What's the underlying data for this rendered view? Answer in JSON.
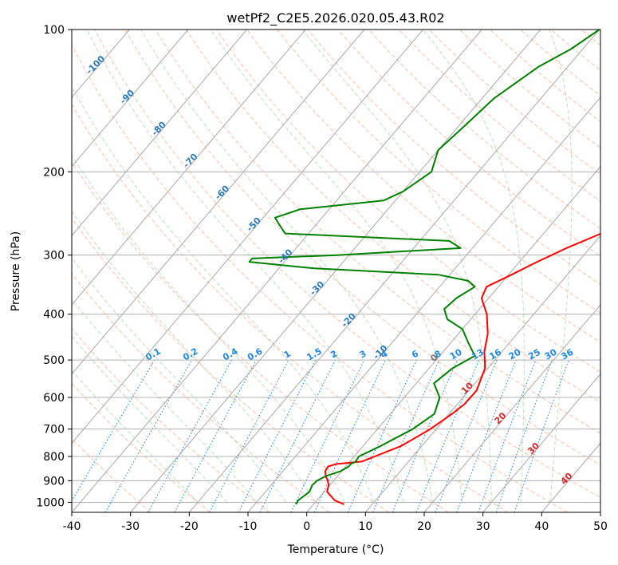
{
  "chart_data": {
    "type": "line",
    "title": "wetPf2_C2E5.2026.020.05.43.R02",
    "xlabel": "Temperature (°C)",
    "ylabel": "Pressure (hPa)",
    "xlim": [
      -40,
      50
    ],
    "ylim": [
      1050,
      100
    ],
    "y_scale": "log",
    "grid": true,
    "x_ticks": [
      "-40",
      "-30",
      "-20",
      "-10",
      "0",
      "10",
      "20",
      "30",
      "40",
      "50"
    ],
    "y_ticks": [
      "100",
      "200",
      "300",
      "400",
      "500",
      "600",
      "700",
      "800",
      "900",
      "1000"
    ],
    "series": [
      {
        "color": "#ff0000",
        "pressure": [
          1010,
          990,
          950,
          920,
          900,
          880,
          860,
          840,
          830,
          820,
          800,
          760,
          700,
          650,
          620,
          580,
          520,
          480,
          440,
          400,
          370,
          350,
          330,
          310,
          300,
          290,
          270,
          255,
          240,
          225,
          200,
          180,
          160,
          140,
          120,
          110,
          100
        ],
        "temperature": [
          5.2,
          3.0,
          0.5,
          -0.2,
          -1.0,
          -2.0,
          -2.8,
          -3.0,
          -2.0,
          2.0,
          3.5,
          6.5,
          9.0,
          10.5,
          11.2,
          11.3,
          9.5,
          7.0,
          5.0,
          2.0,
          -1.2,
          -2.0,
          0.5,
          3.0,
          4.5,
          6.0,
          9.8,
          12.4,
          11.4,
          11.0,
          8.9,
          5.1,
          1.1,
          -2.7,
          -7.0,
          -9.6,
          -12.3
        ]
      },
      {
        "color": "#008000",
        "pressure": [
          1010,
          990,
          950,
          920,
          900,
          880,
          860,
          840,
          830,
          820,
          800,
          760,
          700,
          650,
          600,
          560,
          520,
          490,
          460,
          430,
          410,
          390,
          370,
          350,
          340,
          330,
          320,
          310,
          305,
          300,
          290,
          280,
          270,
          260,
          250,
          240,
          230,
          220,
          200,
          180,
          160,
          140,
          120,
          110,
          100
        ],
        "temperature": [
          -3.0,
          -3.2,
          -2.5,
          -3.0,
          -2.8,
          -2.0,
          -0.2,
          0.5,
          0.5,
          1.0,
          0.8,
          3.0,
          6.0,
          7.5,
          6.0,
          3.0,
          4.0,
          6.0,
          3.0,
          0.0,
          -4.0,
          -6.0,
          -5.5,
          -4.0,
          -6.0,
          -12.0,
          -34.0,
          -46.0,
          -46.0,
          -32.0,
          -12.0,
          -15.0,
          -44.0,
          -46.0,
          -48.0,
          -45.0,
          -32.0,
          -30.0,
          -28.0,
          -30.0,
          -29.0,
          -28.0,
          -25.0,
          -22.0,
          -20.0
        ]
      }
    ],
    "dry_adiabat_labels": [
      "-100",
      "-90",
      "-80",
      "-70",
      "-60",
      "-50",
      "-40",
      "-30",
      "-20",
      "-10",
      "0",
      "10",
      "20",
      "30",
      "40"
    ],
    "mixing_ratio_labels": [
      "0.1",
      "0.2",
      "0.4",
      "0.6",
      "1",
      "1.5",
      "2",
      "3",
      "4",
      "6",
      "8",
      "10",
      "13",
      "16",
      "20",
      "25",
      "30",
      "36"
    ]
  }
}
